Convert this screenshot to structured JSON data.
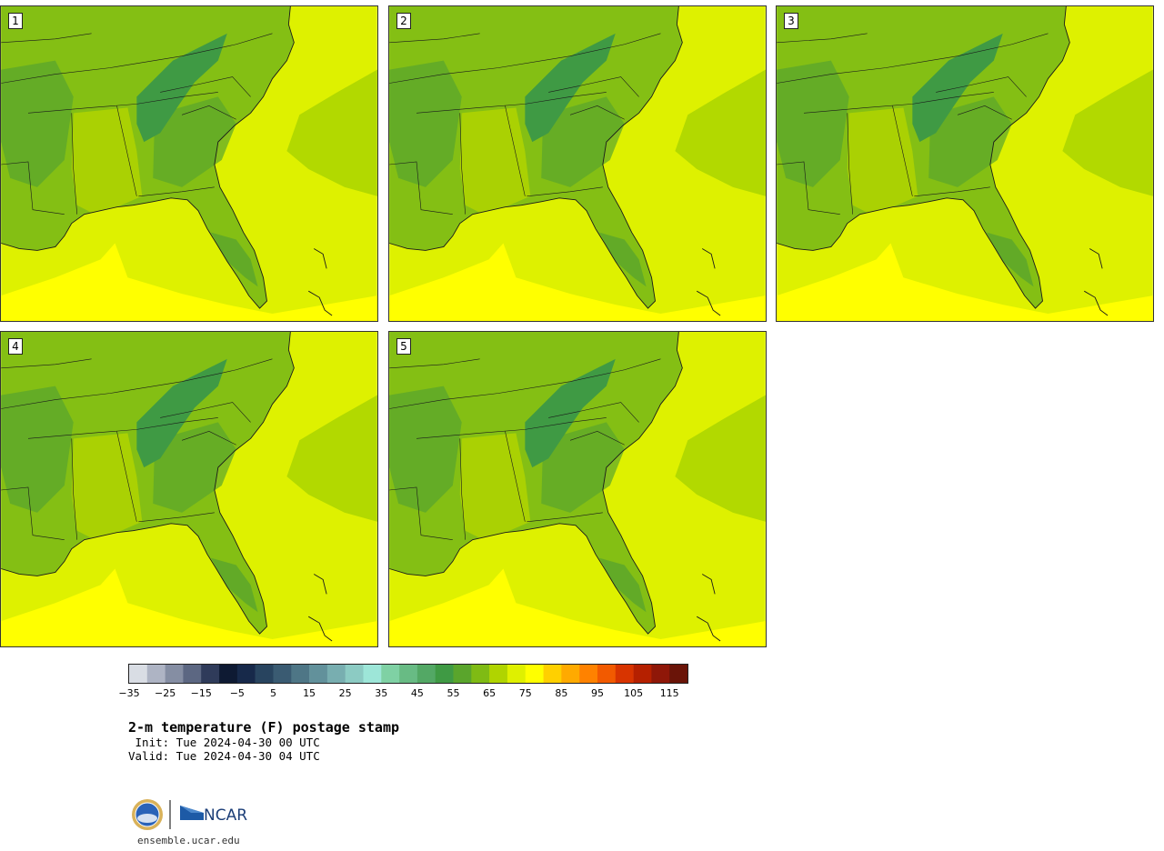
{
  "title": "2-m temperature (F) postage stamp",
  "init_line": " Init: Tue 2024-04-30 00 UTC",
  "valid_line": "Valid: Tue 2024-04-30 04 UTC",
  "footer_url": "ensemble.ucar.edu",
  "logo_text": "NCAR",
  "members": [
    {
      "label": "1"
    },
    {
      "label": "2"
    },
    {
      "label": "3"
    },
    {
      "label": "4"
    },
    {
      "label": "5"
    }
  ],
  "colorbar": {
    "min": -35,
    "max": 120,
    "step": 5,
    "tick_labels": [
      "−35",
      "−25",
      "−15",
      "−5",
      "5",
      "15",
      "25",
      "35",
      "45",
      "55",
      "65",
      "75",
      "85",
      "95",
      "105",
      "115"
    ],
    "colors": [
      "#d9dde4",
      "#aeb4c4",
      "#858ea3",
      "#5c6782",
      "#2f3b5a",
      "#0e1a33",
      "#17294a",
      "#28445f",
      "#3a5b72",
      "#4e7686",
      "#62919b",
      "#78aeb0",
      "#8ccbc3",
      "#9de6d8",
      "#7fd1a4",
      "#68bb84",
      "#53a865",
      "#3f9a44",
      "#5aa52c",
      "#7fbb14",
      "#b0d400",
      "#dff000",
      "#ffff00",
      "#ffd000",
      "#ffaa00",
      "#ff8200",
      "#f25a00",
      "#d83400",
      "#b52000",
      "#8f1708",
      "#6a1408"
    ]
  },
  "map_colors": {
    "ocean_far": "#b2d900",
    "ocean_mid": "#def100",
    "ocean_warm": "#ffff00",
    "land_base": "#84bf14",
    "land_cool": "#5aa52c",
    "land_mtn": "#3f9a44",
    "land_warm": "#b0d400",
    "border": "#1a1a1a"
  }
}
